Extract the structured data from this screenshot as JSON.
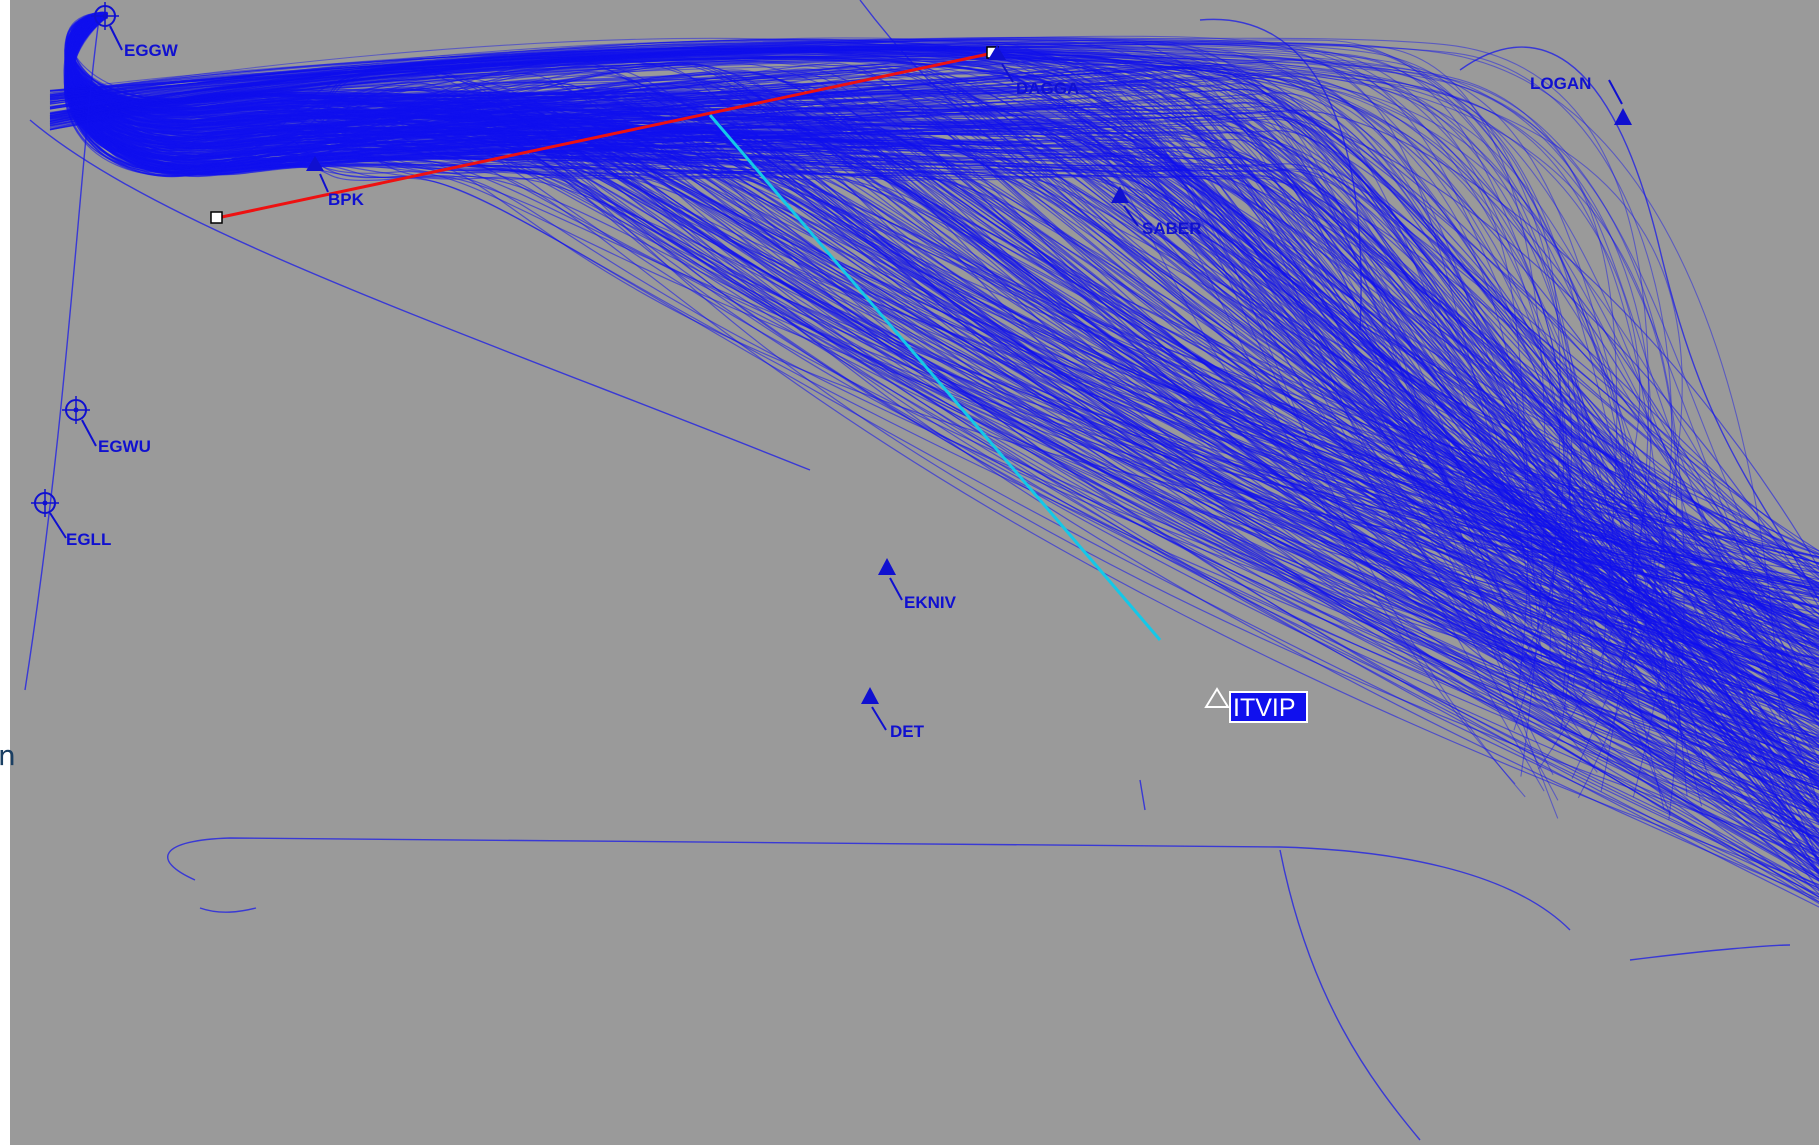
{
  "edge_fragment": "n",
  "colors": {
    "background": "#9a9a9a",
    "track": "#1010ee",
    "track_dense": "#0000ff",
    "waypoint": "#1010d0",
    "label": "#1010d0",
    "red_line": "#ee1111",
    "cyan_line": "#14c8e8",
    "highlight_bg": "#1010ee",
    "highlight_text": "#ffffff"
  },
  "airports": [
    {
      "id": "EGGW",
      "label": "EGGW",
      "icon": "airport-icon"
    },
    {
      "id": "EGWU",
      "label": "EGWU",
      "icon": "airport-icon"
    },
    {
      "id": "EGLL",
      "label": "EGLL",
      "icon": "airport-icon"
    }
  ],
  "waypoints": [
    {
      "id": "BPK",
      "label": "BPK",
      "icon": "triangle-icon"
    },
    {
      "id": "DAGGA",
      "label": "DAGGA",
      "icon": "triangle-icon"
    },
    {
      "id": "SABER",
      "label": "SABER",
      "icon": "triangle-icon"
    },
    {
      "id": "LOGAN",
      "label": "LOGAN",
      "icon": "triangle-icon"
    },
    {
      "id": "EKNIV",
      "label": "EKNIV",
      "icon": "triangle-icon"
    },
    {
      "id": "DET",
      "label": "DET",
      "icon": "triangle-icon"
    }
  ],
  "highlighted_waypoint": {
    "id": "ITVIP",
    "label": "ITVIP",
    "icon": "hollow-triangle-icon"
  },
  "measurement_line": {
    "icon": "measure-line"
  },
  "gate_line": {
    "icon": "gate-line"
  }
}
